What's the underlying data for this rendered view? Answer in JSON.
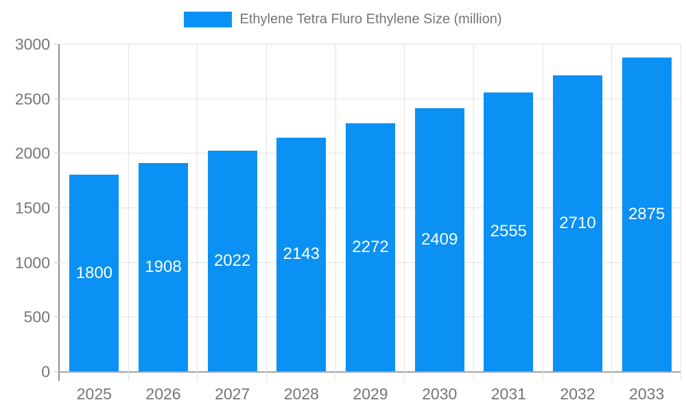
{
  "chart_data": {
    "type": "bar",
    "title": "Ethylene Tetra Fluro Ethylene Size (million)",
    "series_name": "Ethylene Tetra Fluro Ethylene Size (million)",
    "categories": [
      "2025",
      "2026",
      "2027",
      "2028",
      "2029",
      "2030",
      "2031",
      "2032",
      "2033"
    ],
    "values": [
      1800,
      1908,
      2022,
      2143,
      2272,
      2409,
      2555,
      2710,
      2875
    ],
    "xlabel": "",
    "ylabel": "",
    "ylim": [
      0,
      3000
    ],
    "yticks": [
      0,
      500,
      1000,
      1500,
      2000,
      2500,
      3000
    ],
    "grid": true,
    "legend_position": "top",
    "bar_labels_inside": true
  },
  "colors": {
    "bar": "#0b90f3",
    "bar_label": "#ffffff",
    "axis_text": "#757575",
    "legend_text": "#757575",
    "grid_line": "#e2e2e2",
    "tick_line": "#cccccc",
    "axis_line_y": "#8f8f8f",
    "axis_line_x": "#a3a3a3",
    "background": "#ffffff"
  }
}
